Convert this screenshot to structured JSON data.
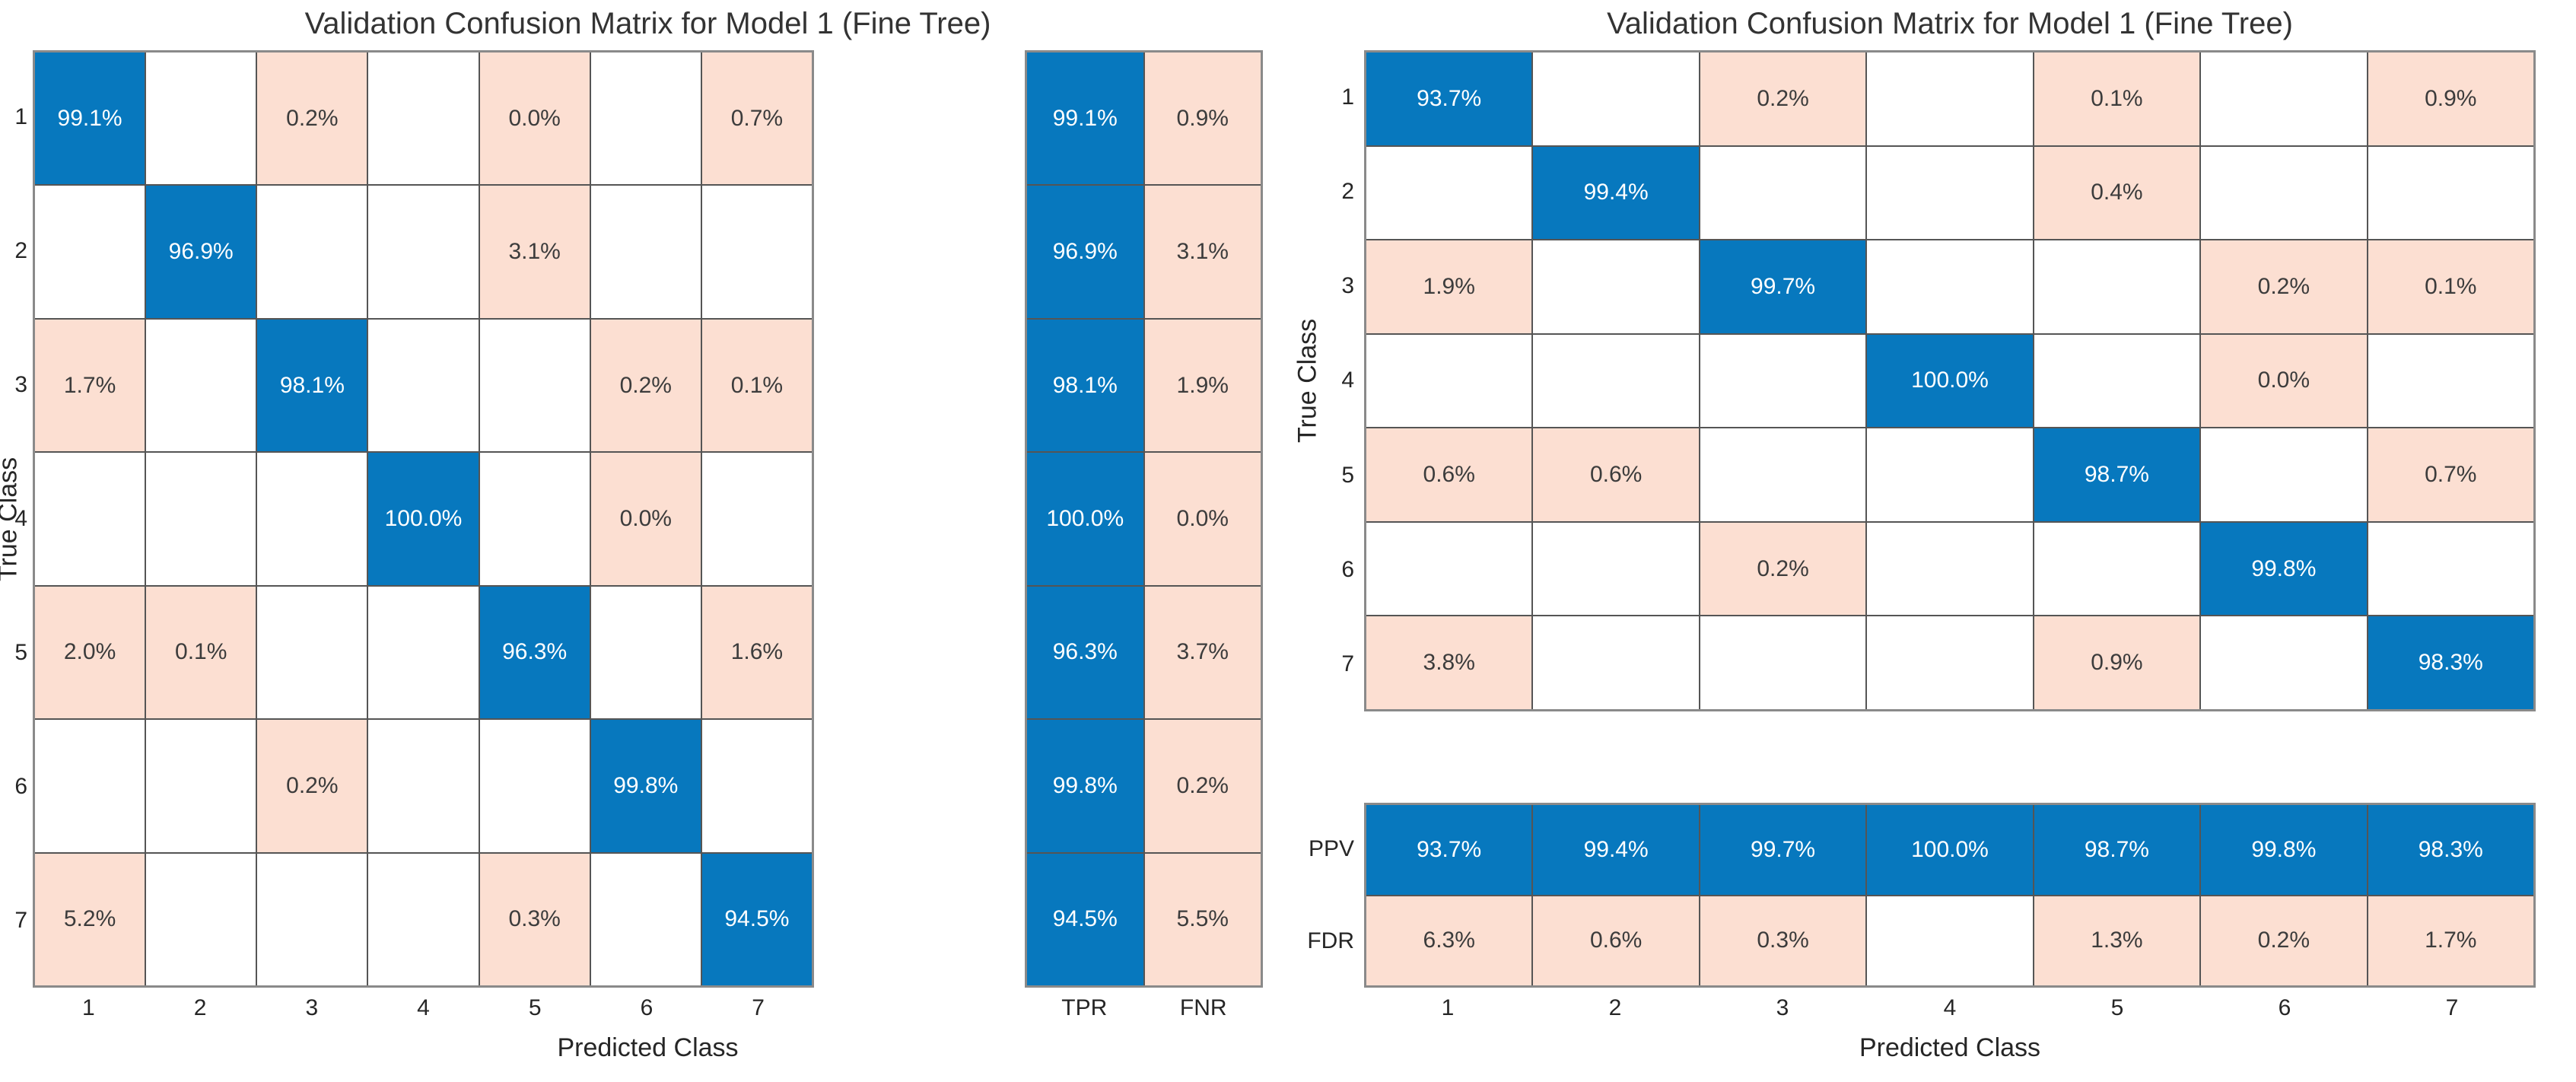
{
  "colors": {
    "diagonal_blue": "#0778be",
    "offdiagonal_pink": "#fcdfd2",
    "grid_line": "#555555",
    "outer_border": "#8a8a8a",
    "axis_text": "#262626",
    "cell_text_on_blue": "#ffffff",
    "cell_text_on_pink": "#3c3c3c"
  },
  "chart_data": [
    {
      "type": "heatmap",
      "title": "Validation Confusion Matrix for Model 1 (Fine Tree)",
      "xlabel": "Predicted Class",
      "ylabel": "True Class",
      "x_ticks": [
        "1",
        "2",
        "3",
        "4",
        "5",
        "6",
        "7"
      ],
      "y_ticks": [
        "1",
        "2",
        "3",
        "4",
        "5",
        "6",
        "7"
      ],
      "normalization": "row-normalized with TPR/FNR row summary",
      "legend_position": "row summary block to the right of matrix",
      "cells": [
        [
          "99.1%",
          null,
          "0.2%",
          null,
          "0.0%",
          null,
          "0.7%"
        ],
        [
          null,
          "96.9%",
          null,
          null,
          "3.1%",
          null,
          null
        ],
        [
          "1.7%",
          null,
          "98.1%",
          null,
          null,
          "0.2%",
          "0.1%"
        ],
        [
          null,
          null,
          null,
          "100.0%",
          null,
          "0.0%",
          null
        ],
        [
          "2.0%",
          "0.1%",
          null,
          null,
          "96.3%",
          null,
          "1.6%"
        ],
        [
          null,
          null,
          "0.2%",
          null,
          null,
          "99.8%",
          null
        ],
        [
          "5.2%",
          null,
          null,
          null,
          "0.3%",
          null,
          "94.5%"
        ]
      ],
      "row_summary": {
        "labels": [
          "TPR",
          "FNR"
        ],
        "rows": [
          [
            "99.1%",
            "0.9%"
          ],
          [
            "96.9%",
            "3.1%"
          ],
          [
            "98.1%",
            "1.9%"
          ],
          [
            "100.0%",
            "0.0%"
          ],
          [
            "96.3%",
            "3.7%"
          ],
          [
            "99.8%",
            "0.2%"
          ],
          [
            "94.5%",
            "5.5%"
          ]
        ]
      }
    },
    {
      "type": "heatmap",
      "title": "Validation Confusion Matrix for Model 1 (Fine Tree)",
      "xlabel": "Predicted Class",
      "ylabel": "True Class",
      "x_ticks": [
        "1",
        "2",
        "3",
        "4",
        "5",
        "6",
        "7"
      ],
      "y_ticks": [
        "1",
        "2",
        "3",
        "4",
        "5",
        "6",
        "7"
      ],
      "normalization": "column-normalized with PPV/FDR column summary",
      "legend_position": "column summary block below matrix",
      "cells": [
        [
          "93.7%",
          null,
          "0.2%",
          null,
          "0.1%",
          null,
          "0.9%"
        ],
        [
          null,
          "99.4%",
          null,
          null,
          "0.4%",
          null,
          null
        ],
        [
          "1.9%",
          null,
          "99.7%",
          null,
          null,
          "0.2%",
          "0.1%"
        ],
        [
          null,
          null,
          null,
          "100.0%",
          null,
          "0.0%",
          null
        ],
        [
          "0.6%",
          "0.6%",
          null,
          null,
          "98.7%",
          null,
          "0.7%"
        ],
        [
          null,
          null,
          "0.2%",
          null,
          null,
          "99.8%",
          null
        ],
        [
          "3.8%",
          null,
          null,
          null,
          "0.9%",
          null,
          "98.3%"
        ]
      ],
      "column_summary": {
        "labels": [
          "PPV",
          "FDR"
        ],
        "rows": [
          [
            "93.7%",
            "99.4%",
            "99.7%",
            "100.0%",
            "98.7%",
            "99.8%",
            "98.3%"
          ],
          [
            "6.3%",
            "0.6%",
            "0.3%",
            null,
            "1.3%",
            "0.2%",
            "1.7%"
          ]
        ]
      }
    }
  ]
}
